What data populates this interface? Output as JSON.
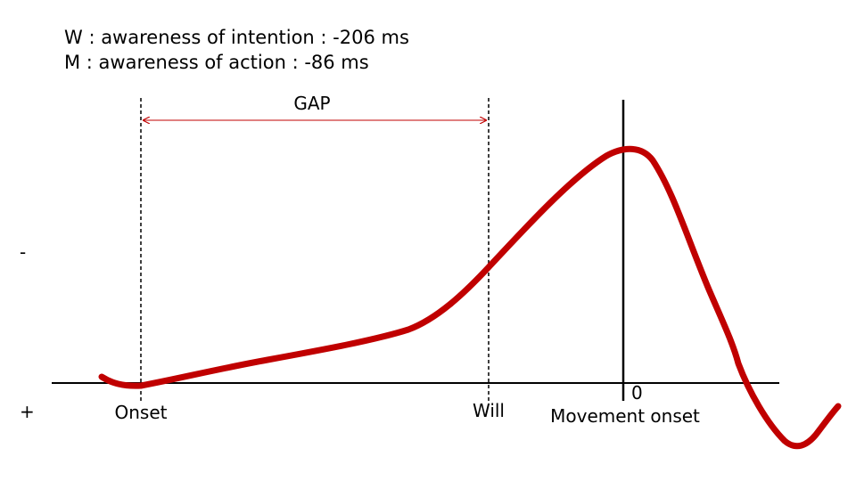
{
  "legend": {
    "w_line": "W : awareness of intention : -206 ms",
    "m_line": "M : awareness of action : -86 ms"
  },
  "axis": {
    "negative_sign": "-",
    "positive_sign": "+",
    "zero_label": "0"
  },
  "markers": {
    "gap_label": "GAP",
    "onset_label": "Onset",
    "will_label": "Will",
    "movement_onset_label": "Movement onset"
  },
  "colors": {
    "curve": "#c00000",
    "gap_arrow": "#c00000",
    "axis": "#000000"
  }
}
